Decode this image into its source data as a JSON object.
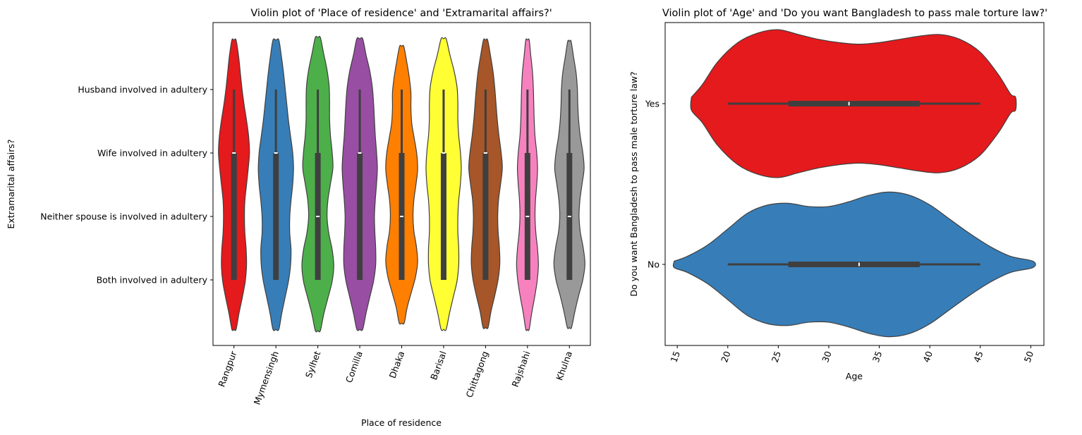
{
  "chart_data": [
    {
      "type": "violin",
      "title": "Violin plot of 'Place of residence' and 'Extramarital affairs?'",
      "xlabel": "Place of residence",
      "ylabel": "Extramarital affairs?",
      "categories": [
        "Rangpur",
        "Mymensingh",
        "Sylhet",
        "Comilla",
        "Dhaka",
        "Barisal",
        "Chittagong",
        "Rajshahi",
        "Khulna"
      ],
      "y_levels": [
        "Both involved in adultery",
        "Neither spouse is involved in adultery",
        "Wife involved in adultery",
        "Husband involved in adultery"
      ],
      "orientation": "vertical",
      "colors": [
        "#e41a1c",
        "#377eb8",
        "#4daf4a",
        "#984ea3",
        "#ff7f00",
        "#ffff33",
        "#a65628",
        "#f781bf",
        "#999999"
      ],
      "violins": [
        {
          "category": "Rangpur",
          "q1": 0.0,
          "median": 2.0,
          "q3": 2.0,
          "whisker_low": 0.0,
          "whisker_high": 3.0,
          "extent": [
            -0.78,
            3.78
          ],
          "widths": [
            0.05,
            0.12,
            0.2,
            0.27,
            0.3,
            0.29,
            0.26,
            0.25,
            0.26,
            0.3,
            0.34,
            0.37,
            0.35,
            0.3,
            0.24,
            0.19,
            0.15,
            0.11,
            0.05
          ]
        },
        {
          "category": "Mymensingh",
          "q1": 0.0,
          "median": 2.0,
          "q3": 2.0,
          "whisker_low": 0.0,
          "whisker_high": 3.0,
          "extent": [
            -0.78,
            3.78
          ],
          "widths": [
            0.07,
            0.14,
            0.22,
            0.3,
            0.35,
            0.36,
            0.33,
            0.33,
            0.36,
            0.4,
            0.42,
            0.4,
            0.35,
            0.3,
            0.26,
            0.22,
            0.18,
            0.13,
            0.07
          ]
        },
        {
          "category": "Sylhet",
          "q1": 0.0,
          "median": 1.0,
          "q3": 2.0,
          "whisker_low": 0.0,
          "whisker_high": 3.0,
          "extent": [
            -0.8,
            3.82
          ],
          "widths": [
            0.06,
            0.14,
            0.24,
            0.34,
            0.38,
            0.34,
            0.26,
            0.22,
            0.24,
            0.3,
            0.36,
            0.34,
            0.3,
            0.28,
            0.28,
            0.27,
            0.22,
            0.14,
            0.06
          ]
        },
        {
          "category": "Comilla",
          "q1": 0.0,
          "median": 2.0,
          "q3": 2.0,
          "whisker_low": 0.0,
          "whisker_high": 3.0,
          "extent": [
            -0.78,
            3.8
          ],
          "widths": [
            0.07,
            0.15,
            0.24,
            0.33,
            0.38,
            0.38,
            0.36,
            0.35,
            0.37,
            0.4,
            0.42,
            0.4,
            0.37,
            0.35,
            0.33,
            0.3,
            0.24,
            0.15,
            0.07
          ]
        },
        {
          "category": "Dhaka",
          "q1": 0.0,
          "median": 1.0,
          "q3": 2.0,
          "whisker_low": 0.0,
          "whisker_high": 3.0,
          "extent": [
            -0.68,
            3.68
          ],
          "widths": [
            0.06,
            0.13,
            0.23,
            0.33,
            0.38,
            0.35,
            0.29,
            0.27,
            0.29,
            0.34,
            0.38,
            0.36,
            0.3,
            0.24,
            0.22,
            0.22,
            0.18,
            0.12,
            0.05
          ]
        },
        {
          "category": "Barisal",
          "q1": 0.0,
          "median": 2.0,
          "q3": 2.0,
          "whisker_low": 0.0,
          "whisker_high": 3.0,
          "extent": [
            -0.78,
            3.8
          ],
          "widths": [
            0.06,
            0.14,
            0.23,
            0.32,
            0.36,
            0.36,
            0.34,
            0.34,
            0.36,
            0.4,
            0.42,
            0.4,
            0.36,
            0.34,
            0.34,
            0.32,
            0.25,
            0.15,
            0.06
          ]
        },
        {
          "category": "Chittagong",
          "q1": 0.0,
          "median": 2.0,
          "q3": 2.0,
          "whisker_low": 0.0,
          "whisker_high": 3.0,
          "extent": [
            -0.75,
            3.78
          ],
          "widths": [
            0.06,
            0.13,
            0.22,
            0.3,
            0.34,
            0.33,
            0.3,
            0.29,
            0.31,
            0.36,
            0.4,
            0.37,
            0.32,
            0.28,
            0.25,
            0.22,
            0.18,
            0.12,
            0.05
          ]
        },
        {
          "category": "Rajshahi",
          "q1": 0.0,
          "median": 1.0,
          "q3": 2.0,
          "whisker_low": 0.0,
          "whisker_high": 3.0,
          "extent": [
            -0.78,
            3.78
          ],
          "widths": [
            0.04,
            0.1,
            0.17,
            0.23,
            0.26,
            0.24,
            0.2,
            0.18,
            0.19,
            0.22,
            0.24,
            0.22,
            0.18,
            0.16,
            0.15,
            0.14,
            0.12,
            0.08,
            0.04
          ]
        },
        {
          "category": "Khulna",
          "q1": 0.0,
          "median": 1.0,
          "q3": 2.0,
          "whisker_low": 0.0,
          "whisker_high": 3.0,
          "extent": [
            -0.75,
            3.76
          ],
          "widths": [
            0.05,
            0.13,
            0.22,
            0.32,
            0.37,
            0.33,
            0.26,
            0.23,
            0.25,
            0.3,
            0.35,
            0.32,
            0.26,
            0.22,
            0.2,
            0.19,
            0.16,
            0.1,
            0.04
          ]
        }
      ]
    },
    {
      "type": "violin",
      "title": "Violin plot of 'Age' and 'Do you want Bangladesh to pass male torture law?'",
      "xlabel": "Age",
      "ylabel": "Do you want Bangladesh to pass male torture law?",
      "categories": [
        "Yes",
        "No"
      ],
      "orientation": "horizontal",
      "xlim": [
        13.8,
        51.3
      ],
      "xticks": [
        15,
        20,
        25,
        30,
        35,
        40,
        45,
        50
      ],
      "colors": [
        "#e41a1c",
        "#377eb8"
      ],
      "violins": [
        {
          "category": "Yes",
          "q1": 26,
          "median": 32,
          "q3": 39,
          "whisker_low": 20,
          "whisker_high": 45,
          "extent": [
            16.4,
            48.5
          ],
          "widths": [
            [
              16.4,
              0.04
            ],
            [
              17.5,
              0.12
            ],
            [
              19.0,
              0.26
            ],
            [
              21.0,
              0.38
            ],
            [
              23.0,
              0.44
            ],
            [
              25.0,
              0.46
            ],
            [
              27.0,
              0.43
            ],
            [
              29.0,
              0.4
            ],
            [
              31.0,
              0.38
            ],
            [
              33.0,
              0.37
            ],
            [
              35.0,
              0.38
            ],
            [
              37.0,
              0.4
            ],
            [
              39.0,
              0.42
            ],
            [
              41.0,
              0.43
            ],
            [
              43.0,
              0.4
            ],
            [
              45.0,
              0.32
            ],
            [
              46.8,
              0.18
            ],
            [
              48.0,
              0.06
            ],
            [
              48.5,
              0.04
            ]
          ]
        },
        {
          "category": "No",
          "q1": 26,
          "median": 33,
          "q3": 39,
          "whisker_low": 20,
          "whisker_high": 45,
          "extent": [
            14.7,
            50.2
          ],
          "widths": [
            [
              14.7,
              0.02
            ],
            [
              16.0,
              0.05
            ],
            [
              18.0,
              0.12
            ],
            [
              20.0,
              0.22
            ],
            [
              22.0,
              0.32
            ],
            [
              24.0,
              0.37
            ],
            [
              26.0,
              0.38
            ],
            [
              28.0,
              0.36
            ],
            [
              30.0,
              0.36
            ],
            [
              32.0,
              0.39
            ],
            [
              34.0,
              0.43
            ],
            [
              36.0,
              0.45
            ],
            [
              38.0,
              0.43
            ],
            [
              40.0,
              0.37
            ],
            [
              42.0,
              0.28
            ],
            [
              44.0,
              0.19
            ],
            [
              46.0,
              0.11
            ],
            [
              48.0,
              0.05
            ],
            [
              50.2,
              0.02
            ]
          ]
        }
      ]
    }
  ]
}
